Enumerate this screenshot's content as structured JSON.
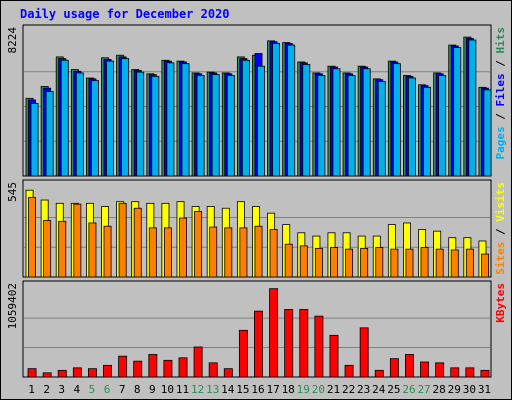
{
  "chart_data": {
    "type": "bar",
    "title": "Daily usage for December 2020",
    "categories": [
      "1",
      "2",
      "3",
      "4",
      "5",
      "6",
      "7",
      "8",
      "9",
      "10",
      "11",
      "12",
      "13",
      "14",
      "15",
      "16",
      "17",
      "18",
      "19",
      "20",
      "21",
      "22",
      "23",
      "24",
      "25",
      "26",
      "27",
      "28",
      "29",
      "30",
      "31"
    ],
    "weekend_days": [
      "5",
      "6",
      "12",
      "13",
      "19",
      "20",
      "26",
      "27"
    ],
    "panels": [
      {
        "id": "hits",
        "ymax_label": "8224",
        "ymax": 8224,
        "side_label": [
          {
            "text": "Pages",
            "color": "#00b0e8"
          },
          {
            "text": " / ",
            "color": "#000000"
          },
          {
            "text": "Files",
            "color": "#0000ff"
          },
          {
            "text": " / ",
            "color": "#000000"
          },
          {
            "text": "Hits",
            "color": "#2e8b57"
          }
        ],
        "series": [
          {
            "name": "Hits",
            "color": "#2e8b57",
            "values": [
              4600,
              5300,
              7050,
              6300,
              5800,
              7000,
              7150,
              6300,
              6050,
              6850,
              6800,
              6100,
              6150,
              6100,
              7050,
              7150,
              8000,
              7900,
              6750,
              6100,
              6500,
              6100,
              6500,
              5750,
              6800,
              5950,
              5400,
              6100,
              7750,
              8224,
              5250
            ]
          },
          {
            "name": "Files",
            "color": "#0000ff",
            "values": [
              4500,
              5200,
              6950,
              6200,
              5750,
              6900,
              7050,
              6250,
              6000,
              6800,
              6750,
              6050,
              6100,
              6050,
              6950,
              7250,
              7950,
              7850,
              6700,
              6050,
              6450,
              6050,
              6450,
              5700,
              6750,
              5900,
              5350,
              6050,
              7700,
              8150,
              5200
            ]
          },
          {
            "name": "Pages",
            "color": "#00b0e8",
            "values": [
              4300,
              5000,
              6850,
              6100,
              5650,
              6800,
              6950,
              6150,
              5900,
              6700,
              6650,
              5950,
              6000,
              5950,
              6850,
              6500,
              7850,
              7750,
              6600,
              5950,
              6350,
              5950,
              6350,
              5600,
              6650,
              5800,
              5250,
              5950,
              7600,
              8050,
              5100
            ]
          }
        ]
      },
      {
        "id": "visits",
        "ymax_label": "545",
        "ymax": 545,
        "side_label": [
          {
            "text": "Sites",
            "color": "#ff8000"
          },
          {
            "text": " / ",
            "color": "#000000"
          },
          {
            "text": "Visits",
            "color": "#ffff00"
          }
        ],
        "series": [
          {
            "name": "Visits",
            "color": "#ffff00",
            "values": [
              530,
              470,
              450,
              450,
              450,
              430,
              460,
              460,
              450,
              450,
              460,
              430,
              430,
              420,
              460,
              430,
              390,
              320,
              270,
              250,
              270,
              270,
              250,
              250,
              320,
              330,
              290,
              280,
              240,
              240,
              220
            ]
          },
          {
            "name": "Sites",
            "color": "#ff8000",
            "values": [
              485,
              345,
              340,
              445,
              330,
              310,
              450,
              420,
              300,
              300,
              360,
              400,
              305,
              300,
              300,
              310,
              290,
              200,
              190,
              175,
              180,
              170,
              175,
              180,
              170,
              170,
              180,
              170,
              165,
              170,
              140
            ]
          }
        ]
      },
      {
        "id": "kbytes",
        "ymax_label": "1059402",
        "ymax": 1059402,
        "side_label": [
          {
            "text": "KBytes",
            "color": "#ff0000"
          }
        ],
        "series": [
          {
            "name": "KBytes",
            "color": "#ff0000",
            "values": [
              100000,
              50000,
              80000,
              110000,
              100000,
              140000,
              250000,
              190000,
              270000,
              200000,
              230000,
              360000,
              170000,
              100000,
              560000,
              790000,
              1059402,
              810000,
              810000,
              730000,
              500000,
              140000,
              590000,
              80000,
              220000,
              270000,
              180000,
              170000,
              110000,
              110000,
              80000
            ]
          }
        ]
      }
    ],
    "xlabel": "",
    "grid": true
  },
  "colors": {
    "background": "#c0c0c0",
    "plot_bg": "#c0c0c0",
    "title": "#0000ff",
    "weekday_label": "#000000",
    "weekend_label": "#2e8b57"
  }
}
